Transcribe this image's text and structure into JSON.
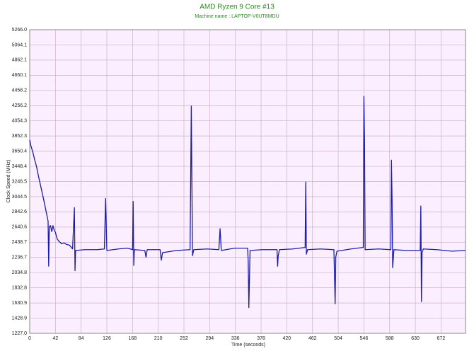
{
  "chart_data": {
    "type": "line",
    "title": "AMD Ryzen 9 Core #13",
    "subtitle": "Machine name : LAPTOP-V0UT8MDU",
    "x_label": "Time (seconds)",
    "y_label": "Clock Speed (MHz)",
    "x": [
      0,
      2,
      5,
      8,
      11,
      14,
      17,
      20,
      23,
      26,
      28,
      30,
      31,
      32,
      34,
      36,
      38,
      40,
      42,
      45,
      48,
      52,
      56,
      60,
      65,
      70,
      73,
      74,
      75,
      90,
      110,
      122,
      124,
      126,
      145,
      160,
      168,
      169,
      170,
      171,
      188,
      190,
      192,
      213,
      215,
      217,
      240,
      262,
      264,
      265,
      266,
      268,
      290,
      309,
      311,
      313,
      335,
      356,
      357,
      358,
      360,
      380,
      404,
      405,
      406,
      408,
      430,
      450,
      451,
      452,
      454,
      475,
      497,
      499,
      500,
      502,
      525,
      545,
      546,
      547,
      548,
      570,
      590,
      591,
      592,
      593,
      595,
      615,
      638,
      639,
      640,
      641,
      643,
      665,
      690,
      712
    ],
    "series": [
      {
        "name": "Core #13",
        "color": "#1c1ca8",
        "values": [
          3800,
          3720,
          3640,
          3540,
          3450,
          3330,
          3220,
          3110,
          3000,
          2880,
          2800,
          2720,
          2120,
          2650,
          2660,
          2580,
          2660,
          2600,
          2570,
          2480,
          2450,
          2420,
          2430,
          2410,
          2400,
          2350,
          2900,
          2060,
          2330,
          2340,
          2340,
          2350,
          3020,
          2330,
          2350,
          2360,
          2340,
          2980,
          2130,
          2340,
          2330,
          2240,
          2340,
          2340,
          2200,
          2300,
          2330,
          2340,
          4250,
          3200,
          2260,
          2340,
          2350,
          2340,
          2620,
          2330,
          2360,
          2360,
          2180,
          1570,
          2330,
          2340,
          2340,
          2120,
          2260,
          2340,
          2350,
          2370,
          3240,
          2280,
          2340,
          2350,
          2340,
          1620,
          2240,
          2320,
          2350,
          2370,
          4380,
          3800,
          2340,
          2350,
          2340,
          3530,
          3000,
          2100,
          2340,
          2330,
          2330,
          2920,
          1650,
          2300,
          2350,
          2340,
          2320,
          2330
        ]
      }
    ],
    "xlim": [
      0,
      712
    ],
    "ylim": [
      1227,
      5266
    ],
    "xticks": [
      0,
      42,
      84,
      126,
      168,
      210,
      252,
      294,
      336,
      378,
      420,
      462,
      504,
      546,
      588,
      630,
      672
    ],
    "yticks": [
      {
        "value": 1227,
        "label": "1227.0"
      },
      1428.9,
      1630.9,
      1832.8,
      2034.8,
      2236.7,
      2438.7,
      2640.6,
      2842.6,
      3044.5,
      3246.5,
      3448.4,
      3650.4,
      3852.3,
      4054.3,
      4256.2,
      4458.2,
      4660.1,
      4862.1,
      5064.1,
      {
        "value": 5266,
        "label": "5266.0"
      }
    ],
    "grid": true,
    "plot_background": "#fbeefe"
  }
}
